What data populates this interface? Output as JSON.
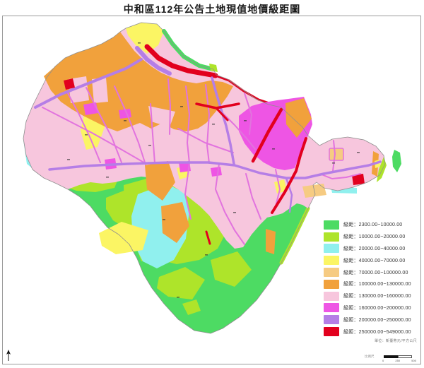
{
  "title": "中和區112年公告土地現值地價級距圖",
  "legend": {
    "label_prefix": "級距：",
    "items": [
      {
        "name": "green",
        "color": "#4ddb63",
        "range": "2300.00~10000.00"
      },
      {
        "name": "yellow-green",
        "color": "#aee42a",
        "range": "10000.00~20000.00"
      },
      {
        "name": "cyan",
        "color": "#90f0ee",
        "range": "20000.00~40000.00"
      },
      {
        "name": "yellow",
        "color": "#fbf564",
        "range": "40000.00~70000.00"
      },
      {
        "name": "light-orange",
        "color": "#f6cb82",
        "range": "70000.00~100000.00"
      },
      {
        "name": "orange",
        "color": "#f1a13c",
        "range": "100000.00~130000.00"
      },
      {
        "name": "pink",
        "color": "#f7c6dd",
        "range": "130000.00~160000.00"
      },
      {
        "name": "magenta",
        "color": "#ee55e4",
        "range": "160000.00~200000.00"
      },
      {
        "name": "purple",
        "color": "#b57ee6",
        "range": "200000.00~250000.00"
      },
      {
        "name": "red",
        "color": "#e2001e",
        "range": "250000.00~549000.00"
      }
    ],
    "unit_note": "單位：新臺幣元/平方公尺"
  },
  "scalebar": {
    "caption": "比例尺",
    "tick_labels": [
      "0",
      "250",
      "500"
    ]
  }
}
